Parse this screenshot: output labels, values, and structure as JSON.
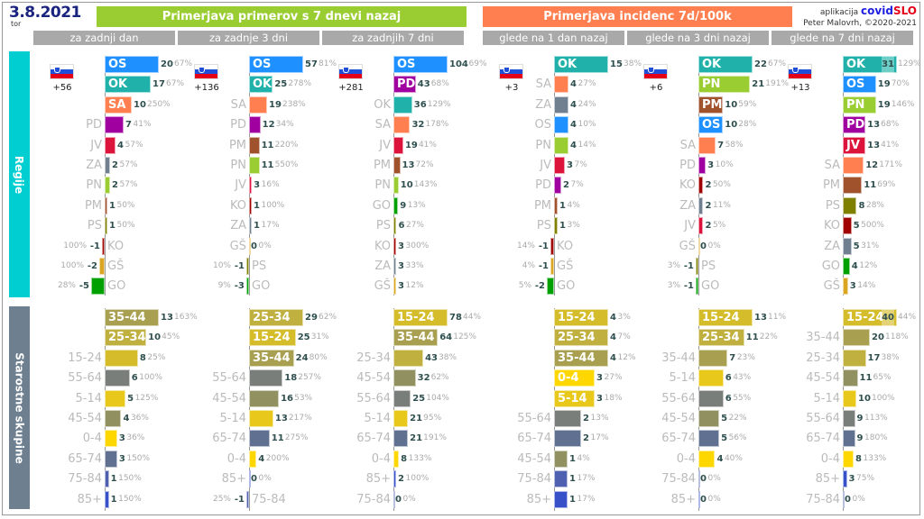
{
  "header": {
    "date": "3.8.2021",
    "day": "tor",
    "group_cases": "Primerjava primerov s 7 dnevi nazaj",
    "group_incidence": "Primerjava incidenc 7d/100k",
    "credit_app_prefix": "aplikacija",
    "credit_app_a": "covid",
    "credit_app_b": "SLO",
    "credit_author": "Peter Malovrh, ©2020-2021",
    "colors": {
      "cases": "#9acd32",
      "incidence": "#ff7f50",
      "sub": "#a9a9a9"
    }
  },
  "sections": {
    "regions": "Regije",
    "ages": "Starostne skupine",
    "colors": {
      "regions": "#00ced1",
      "ages": "#6e7f8f"
    }
  },
  "region_colors": {
    "OS": "#1e90ff",
    "OK": "#20b2aa",
    "SA": "#ff7f50",
    "PD": "#a000a0",
    "JV": "#dc143c",
    "ZA": "#708090",
    "PN": "#9acd32",
    "PM": "#a0522d",
    "PS": "#808000",
    "KO": "#a00000",
    "GŠ": "#daa520",
    "GO": "#00a000"
  },
  "age_colors": {
    "0-4": "#ffd700",
    "5-14": "#e8c81a",
    "15-24": "#d4bc2a",
    "25-34": "#c0b040",
    "35-44": "#a8a050",
    "45-54": "#909060",
    "55-64": "#7a7e7a",
    "65-74": "#607090",
    "75-84": "#5060b0",
    "85+": "#3850c8"
  },
  "chart_data": [
    {
      "type": "bar",
      "group": "cases",
      "title": "za zadnji dan",
      "total": "+56",
      "regions": [
        [
          "OS",
          20,
          "67%"
        ],
        [
          "OK",
          17,
          "67%"
        ],
        [
          "SA",
          10,
          "250%"
        ],
        [
          "PD",
          7,
          "41%"
        ],
        [
          "JV",
          4,
          "57%"
        ],
        [
          "ZA",
          2,
          "57%"
        ],
        [
          "PN",
          2,
          "57%"
        ],
        [
          "PM",
          1,
          "50%"
        ],
        [
          "PS",
          1,
          "50%"
        ],
        [
          "KO",
          -1,
          "100%"
        ],
        [
          "GŠ",
          -2,
          "100%"
        ],
        [
          "GO",
          -5,
          "28%"
        ]
      ],
      "ages": [
        [
          "35-44",
          13,
          "163%"
        ],
        [
          "25-34",
          10,
          "45%"
        ],
        [
          "15-24",
          8,
          "25%"
        ],
        [
          "55-64",
          6,
          "100%"
        ],
        [
          "5-14",
          5,
          "125%"
        ],
        [
          "45-54",
          4,
          "36%"
        ],
        [
          "0-4",
          3,
          "36%"
        ],
        [
          "65-74",
          3,
          "150%"
        ],
        [
          "75-84",
          1,
          "150%"
        ],
        [
          "85+",
          1,
          "150%"
        ]
      ]
    },
    {
      "type": "bar",
      "group": "cases",
      "title": "za zadnje 3 dni",
      "total": "+136",
      "regions": [
        [
          "OS",
          57,
          "81%"
        ],
        [
          "OK",
          25,
          "278%"
        ],
        [
          "SA",
          19,
          "238%"
        ],
        [
          "PD",
          12,
          "34%"
        ],
        [
          "PM",
          11,
          "220%"
        ],
        [
          "PN",
          11,
          "550%"
        ],
        [
          "JV",
          3,
          "16%"
        ],
        [
          "KO",
          1,
          "100%"
        ],
        [
          "ZA",
          1,
          "17%"
        ],
        [
          "GŠ",
          0,
          "0%"
        ],
        [
          "PS",
          -1,
          "10%"
        ],
        [
          "GO",
          -3,
          "9%"
        ]
      ],
      "ages": [
        [
          "25-34",
          29,
          "62%"
        ],
        [
          "15-24",
          25,
          "31%"
        ],
        [
          "35-44",
          24,
          "80%"
        ],
        [
          "55-64",
          18,
          "257%"
        ],
        [
          "45-54",
          16,
          "53%"
        ],
        [
          "5-14",
          13,
          "217%"
        ],
        [
          "65-74",
          11,
          "275%"
        ],
        [
          "0-4",
          4,
          "200%"
        ],
        [
          "85+",
          0,
          "0%"
        ],
        [
          "75-84",
          -1,
          "25%"
        ]
      ]
    },
    {
      "type": "bar",
      "group": "cases",
      "title": "za zadnjih 7 dni",
      "total": "+281",
      "regions": [
        [
          "OS",
          104,
          "69%"
        ],
        [
          "PD",
          43,
          "68%"
        ],
        [
          "OK",
          36,
          "129%"
        ],
        [
          "SA",
          32,
          "178%"
        ],
        [
          "JV",
          19,
          "41%"
        ],
        [
          "PM",
          13,
          "72%"
        ],
        [
          "PN",
          10,
          "143%"
        ],
        [
          "GO",
          9,
          "13%"
        ],
        [
          "PS",
          6,
          "27%"
        ],
        [
          "KO",
          3,
          "300%"
        ],
        [
          "ZA",
          3,
          "33%"
        ],
        [
          "GŠ",
          3,
          "12%"
        ]
      ],
      "ages": [
        [
          "15-24",
          78,
          "44%"
        ],
        [
          "35-44",
          64,
          "125%"
        ],
        [
          "25-34",
          43,
          "38%"
        ],
        [
          "45-54",
          32,
          "62%"
        ],
        [
          "55-64",
          25,
          "104%"
        ],
        [
          "5-14",
          21,
          "95%"
        ],
        [
          "65-74",
          21,
          "191%"
        ],
        [
          "0-4",
          8,
          "133%"
        ],
        [
          "85+",
          2,
          "100%"
        ],
        [
          "75-84",
          0,
          "0%"
        ]
      ]
    },
    {
      "type": "bar",
      "group": "incidence",
      "title": "glede na 1 dan nazaj",
      "total": "+3",
      "regions": [
        [
          "OK",
          15,
          "38%"
        ],
        [
          "SA",
          4,
          "27%"
        ],
        [
          "ZA",
          4,
          "24%"
        ],
        [
          "OS",
          4,
          "10%"
        ],
        [
          "PN",
          4,
          "14%"
        ],
        [
          "JV",
          3,
          "7%"
        ],
        [
          "PD",
          2,
          "7%"
        ],
        [
          "PM",
          1,
          "4%"
        ],
        [
          "PS",
          1,
          "3%"
        ],
        [
          "KO",
          -1,
          "14%"
        ],
        [
          "GŠ",
          -1,
          "4%"
        ],
        [
          "GO",
          -2,
          "5%"
        ]
      ],
      "ages": [
        [
          "15-24",
          4,
          "3%"
        ],
        [
          "25-34",
          4,
          "7%"
        ],
        [
          "35-44",
          4,
          "12%"
        ],
        [
          "0-4",
          3,
          "27%"
        ],
        [
          "5-14",
          3,
          "18%"
        ],
        [
          "55-64",
          2,
          "13%"
        ],
        [
          "65-74",
          2,
          "17%"
        ],
        [
          "45-54",
          1,
          "4%"
        ],
        [
          "75-84",
          1,
          "17%"
        ],
        [
          "85+",
          1,
          "17%"
        ]
      ]
    },
    {
      "type": "bar",
      "group": "incidence",
      "title": "glede na 3 dni nazaj",
      "total": "+6",
      "regions": [
        [
          "OK",
          22,
          "67%"
        ],
        [
          "PN",
          21,
          "191%"
        ],
        [
          "PM",
          10,
          "59%"
        ],
        [
          "OS",
          10,
          "28%"
        ],
        [
          "SA",
          7,
          "58%"
        ],
        [
          "PD",
          3,
          "10%"
        ],
        [
          "KO",
          2,
          "50%"
        ],
        [
          "ZA",
          2,
          "11%"
        ],
        [
          "JV",
          2,
          "5%"
        ],
        [
          "GŠ",
          0,
          "0%"
        ],
        [
          "PS",
          -1,
          "3%"
        ],
        [
          "GO",
          -1,
          "3%"
        ]
      ],
      "ages": [
        [
          "15-24",
          13,
          "11%"
        ],
        [
          "25-34",
          11,
          "22%"
        ],
        [
          "35-44",
          7,
          "23%"
        ],
        [
          "5-14",
          6,
          "43%"
        ],
        [
          "55-64",
          6,
          "55%"
        ],
        [
          "45-54",
          5,
          "22%"
        ],
        [
          "65-74",
          5,
          "56%"
        ],
        [
          "0-4",
          4,
          "40%"
        ],
        [
          "75-84",
          0,
          "0%"
        ],
        [
          "85+",
          0,
          "0%"
        ]
      ]
    },
    {
      "type": "bar",
      "group": "incidence",
      "title": "glede na 7 dni nazaj",
      "total": "+13",
      "regions": [
        [
          "OK",
          31,
          "129%"
        ],
        [
          "OS",
          19,
          "70%"
        ],
        [
          "PN",
          19,
          "146%"
        ],
        [
          "PD",
          13,
          "68%"
        ],
        [
          "JV",
          13,
          "41%"
        ],
        [
          "SA",
          12,
          "171%"
        ],
        [
          "PM",
          11,
          "69%"
        ],
        [
          "PS",
          8,
          "28%"
        ],
        [
          "KO",
          5,
          "500%"
        ],
        [
          "ZA",
          5,
          "31%"
        ],
        [
          "GO",
          4,
          "12%"
        ],
        [
          "GŠ",
          3,
          "14%"
        ]
      ],
      "ages": [
        [
          "15-24",
          40,
          "44%"
        ],
        [
          "35-44",
          20,
          "118%"
        ],
        [
          "25-34",
          17,
          "38%"
        ],
        [
          "45-54",
          11,
          "65%"
        ],
        [
          "5-14",
          10,
          "100%"
        ],
        [
          "55-64",
          9,
          "113%"
        ],
        [
          "65-74",
          9,
          "180%"
        ],
        [
          "0-4",
          8,
          "133%"
        ],
        [
          "85+",
          3,
          "75%"
        ],
        [
          "75-84",
          0,
          "0%"
        ]
      ]
    }
  ]
}
